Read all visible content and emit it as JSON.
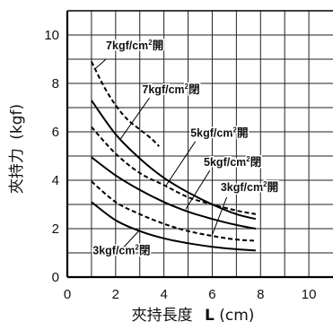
{
  "chart_data": {
    "type": "line",
    "title": "",
    "xlabel": {
      "text": "夾持長度",
      "unit_bold": "L",
      "unit_rest": "(cm)"
    },
    "ylabel": {
      "text": "夾持力",
      "unit": "(kgf)"
    },
    "xlim": [
      0,
      11
    ],
    "ylim": [
      0,
      11
    ],
    "grid": true,
    "x_ticks": [
      0,
      2,
      4,
      6,
      8,
      10
    ],
    "y_ticks": [
      0,
      2,
      4,
      6,
      8,
      10
    ],
    "series": [
      {
        "style": "dashed",
        "x": [
          1,
          1.5,
          2,
          2.5,
          3,
          3.5,
          3.8
        ],
        "y": [
          8.9,
          7.9,
          7.1,
          6.5,
          6.1,
          5.7,
          5.4
        ]
      },
      {
        "style": "solid",
        "x": [
          1,
          2,
          3,
          4,
          5,
          6,
          7,
          7.8
        ],
        "y": [
          7.3,
          5.9,
          4.9,
          4.1,
          3.5,
          3.0,
          2.6,
          2.4
        ]
      },
      {
        "style": "dashed",
        "x": [
          1,
          2,
          3,
          4,
          5,
          6,
          7,
          7.8
        ],
        "y": [
          6.2,
          5.1,
          4.3,
          3.8,
          3.3,
          3.0,
          2.75,
          2.6
        ]
      },
      {
        "style": "solid",
        "x": [
          1,
          2,
          3,
          4,
          5,
          6,
          7,
          7.8
        ],
        "y": [
          4.95,
          4.2,
          3.6,
          3.1,
          2.7,
          2.4,
          2.15,
          2.0
        ]
      },
      {
        "style": "dashed",
        "x": [
          1,
          2,
          3,
          4,
          5,
          6,
          7,
          7.8
        ],
        "y": [
          3.95,
          3.1,
          2.6,
          2.2,
          1.9,
          1.7,
          1.55,
          1.5
        ]
      },
      {
        "style": "solid",
        "x": [
          1,
          2,
          3,
          4,
          5,
          6,
          7,
          7.8
        ],
        "y": [
          3.1,
          2.35,
          1.9,
          1.6,
          1.4,
          1.25,
          1.15,
          1.1
        ]
      }
    ],
    "annotations": [
      {
        "label": "7kgf/cm",
        "sup": "2",
        "suffix": "開",
        "x": 1.6,
        "y": 9.4,
        "leader": [
          1.6,
          9.0,
          1.15,
          8.6
        ]
      },
      {
        "label": "7kgf/cm",
        "sup": "2",
        "suffix": "閉",
        "x": 3.1,
        "y": 7.6,
        "leader": [
          3.4,
          7.4,
          2.2,
          5.7
        ]
      },
      {
        "label": "5kgf/cm",
        "sup": "2",
        "suffix": "開",
        "x": 5.1,
        "y": 5.8,
        "leader": [
          5.3,
          5.6,
          4.1,
          3.8
        ]
      },
      {
        "label": "5kgf/cm",
        "sup": "2",
        "suffix": "閉",
        "x": 5.65,
        "y": 4.6,
        "leader": [
          5.9,
          4.4,
          4.9,
          2.8
        ]
      },
      {
        "label": "3kgf/cm",
        "sup": "2",
        "suffix": "開",
        "x": 6.35,
        "y": 3.55,
        "leader": [
          6.6,
          3.3,
          6.0,
          1.75
        ]
      },
      {
        "label": "3kgf/cm",
        "sup": "2",
        "suffix": "閉",
        "x": 1.05,
        "y": 0.95,
        "leader": [
          2.3,
          1.2,
          3.0,
          1.95
        ]
      }
    ]
  }
}
